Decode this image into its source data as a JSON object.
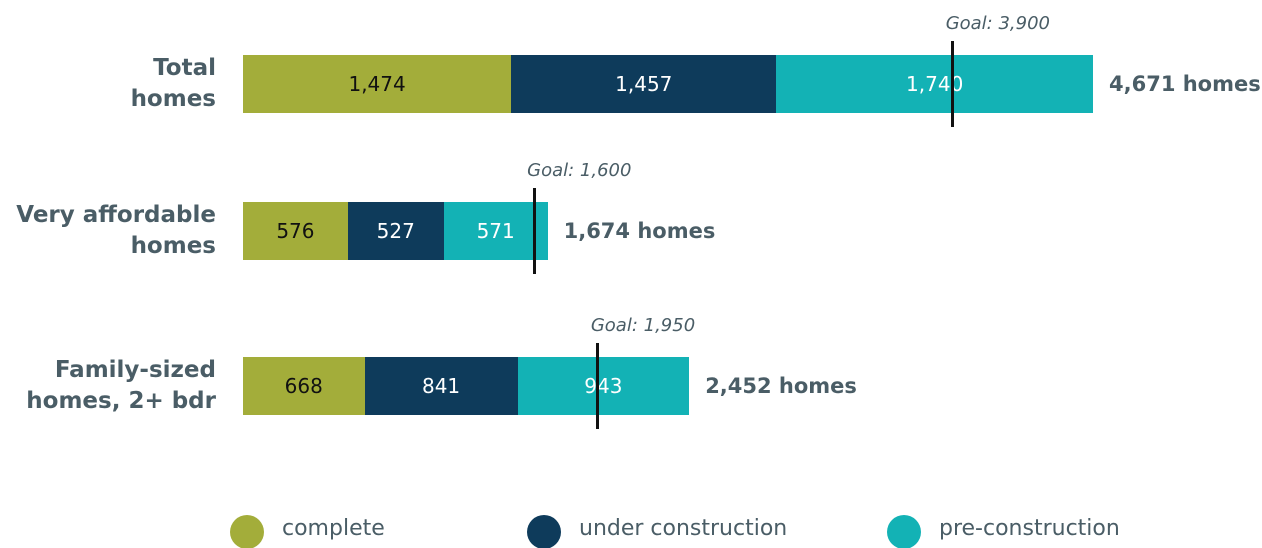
{
  "chart_data": {
    "type": "stacked-bar",
    "categories": [
      "Total\nhomes",
      "Very affordable\nhomes",
      "Family-sized\nhomes, 2+ bdr"
    ],
    "series": [
      {
        "name": "complete",
        "color": "#a3ad3a",
        "text_color": "#111111",
        "values": [
          1474,
          576,
          668
        ],
        "value_labels": [
          "1,474",
          "576",
          "668"
        ]
      },
      {
        "name": "under construction",
        "color": "#0e3b5b",
        "text_color": "#ffffff",
        "values": [
          1457,
          527,
          841
        ],
        "value_labels": [
          "1,457",
          "527",
          "841"
        ]
      },
      {
        "name": "pre-construction",
        "color": "#13b2b5",
        "text_color": "#ffffff",
        "values": [
          1740,
          571,
          943
        ],
        "value_labels": [
          "1,740",
          "571",
          "943"
        ]
      }
    ],
    "totals": [
      4671,
      1674,
      2452
    ],
    "total_labels": [
      "4,671 homes",
      "1,674 homes",
      "2,452 homes"
    ],
    "goals": [
      3900,
      1600,
      1950
    ],
    "goal_labels": [
      "Goal: 3,900",
      "Goal: 1,600",
      "Goal: 1,950"
    ]
  }
}
